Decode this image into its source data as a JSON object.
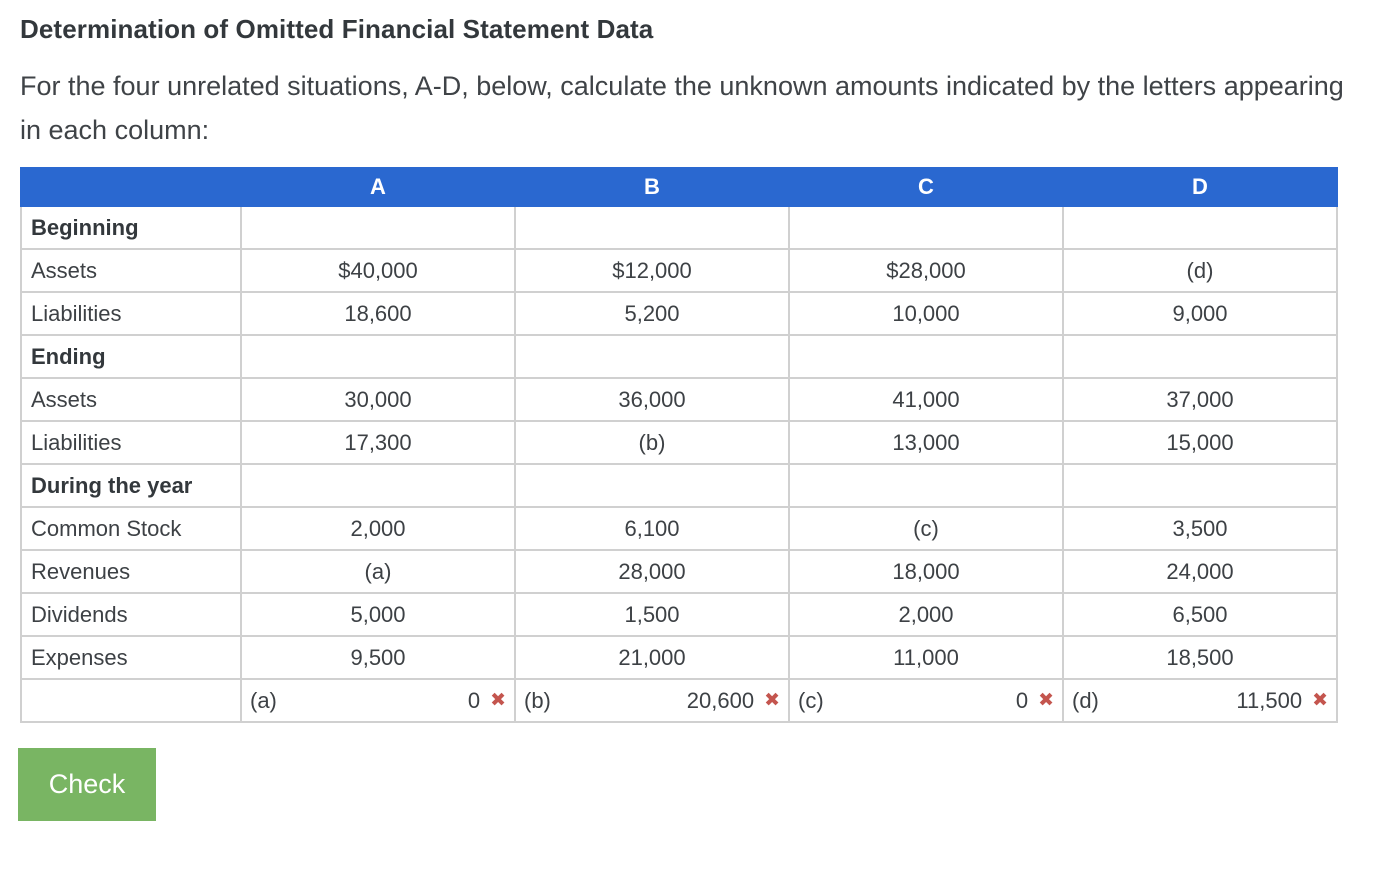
{
  "page": {
    "title": "Determination of Omitted Financial Statement Data",
    "instructions": "For the four unrelated situations, A-D, below, calculate the unknown amounts indicated by the letters appearing in each column:"
  },
  "table": {
    "columns": [
      "A",
      "B",
      "C",
      "D"
    ],
    "rows": [
      {
        "label": "Beginning",
        "bold": true,
        "values": [
          "",
          "",
          "",
          ""
        ]
      },
      {
        "label": "Assets",
        "bold": false,
        "values": [
          "$40,000",
          "$12,000",
          "$28,000",
          "(d)"
        ]
      },
      {
        "label": "Liabilities",
        "bold": false,
        "values": [
          "18,600",
          "5,200",
          "10,000",
          "9,000"
        ]
      },
      {
        "label": "Ending",
        "bold": true,
        "values": [
          "",
          "",
          "",
          ""
        ]
      },
      {
        "label": "Assets",
        "bold": false,
        "values": [
          "30,000",
          "36,000",
          "41,000",
          "37,000"
        ]
      },
      {
        "label": "Liabilities",
        "bold": false,
        "values": [
          "17,300",
          "(b)",
          "13,000",
          "15,000"
        ]
      },
      {
        "label": "During the year",
        "bold": true,
        "values": [
          "",
          "",
          "",
          ""
        ]
      },
      {
        "label": "Common Stock",
        "bold": false,
        "values": [
          "2,000",
          "6,100",
          "(c)",
          "3,500"
        ]
      },
      {
        "label": "Revenues",
        "bold": false,
        "values": [
          "(a)",
          "28,000",
          "18,000",
          "24,000"
        ]
      },
      {
        "label": "Dividends",
        "bold": false,
        "values": [
          "5,000",
          "1,500",
          "2,000",
          "6,500"
        ]
      },
      {
        "label": "Expenses",
        "bold": false,
        "values": [
          "9,500",
          "21,000",
          "11,000",
          "18,500"
        ]
      }
    ],
    "answer_row": {
      "entries": [
        {
          "label": "(a)",
          "value": "0",
          "status": "incorrect"
        },
        {
          "label": "(b)",
          "value": "20,600",
          "status": "incorrect"
        },
        {
          "label": "(c)",
          "value": "0",
          "status": "incorrect"
        },
        {
          "label": "(d)",
          "value": "11,500",
          "status": "incorrect"
        }
      ],
      "incorrect_icon": "✖"
    }
  },
  "check_button": {
    "label": "Check"
  },
  "colors": {
    "header_blue": "#2a68d0",
    "grid_gray": "#d0d0d0",
    "answer_bg": "#efefef",
    "incorrect_red": "#c4554e",
    "button_green": "#79b563"
  }
}
